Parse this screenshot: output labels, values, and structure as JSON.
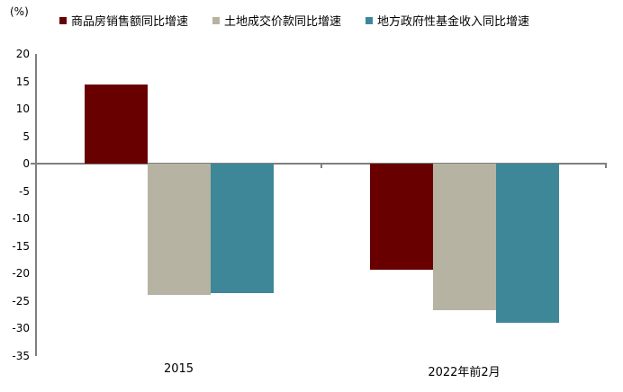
{
  "chart_data": {
    "type": "bar",
    "categories": [
      "2015",
      "2022年前2月"
    ],
    "series": [
      {
        "name": "商品房销售额同比增速",
        "color": "#680000",
        "values": [
          14.4,
          -19.3
        ]
      },
      {
        "name": "土地成交价款同比增速",
        "color": "#b6b3a2",
        "values": [
          -23.9,
          -26.7
        ]
      },
      {
        "name": "地方政府性基金收入同比增速",
        "color": "#3e8798",
        "values": [
          -23.6,
          -28.9
        ]
      }
    ],
    "title": "",
    "xlabel": "",
    "ylabel": "(%)",
    "ylim": [
      -35,
      20
    ],
    "ytick_step": 5,
    "grid": false,
    "legend_position": "top",
    "axis_color": "#7f7f7f",
    "text_color": "#000000"
  }
}
